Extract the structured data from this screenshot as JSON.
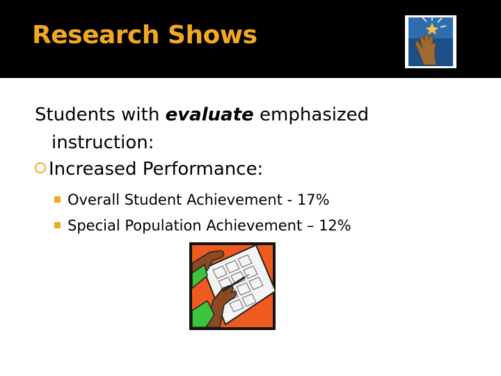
{
  "title": "Research Shows",
  "intro": {
    "prefix": "Students with ",
    "emphasis": "evaluate",
    "suffix": " emphasized",
    "continuation": "instruction:"
  },
  "bullet": "Increased Performance:",
  "subbullets": [
    "Overall Student Achievement - 17%",
    "Special Population Achievement – 12%"
  ],
  "colors": {
    "accent": "#f2a91f",
    "header_background": "#000000",
    "text": "#000000"
  },
  "icons": [
    "hand-reaching-star-logo",
    "hand-writing-worksheet-clipart"
  ]
}
